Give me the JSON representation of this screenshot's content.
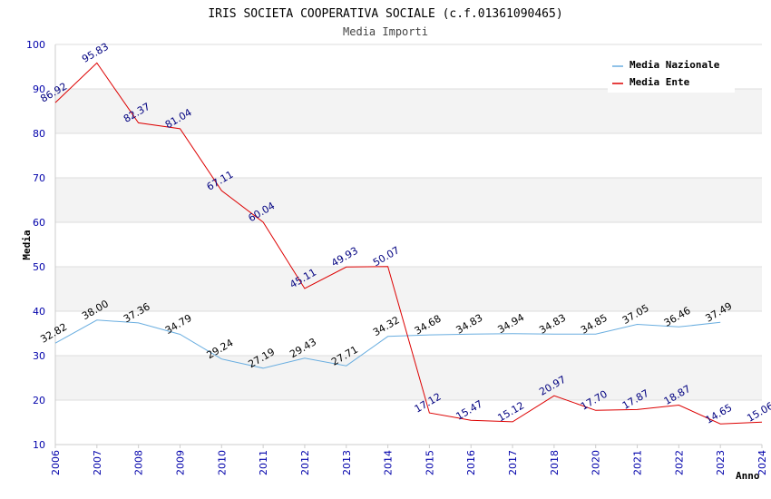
{
  "chart_data": {
    "type": "line",
    "title": "IRIS SOCIETA COOPERATIVA SOCIALE (c.f.01361090465)",
    "subtitle": "Media Importi",
    "xlabel": "Anno",
    "ylabel": "Media",
    "ylim": [
      10,
      100
    ],
    "yticks": [
      "10",
      "20",
      "30",
      "40",
      "50",
      "60",
      "70",
      "80",
      "90",
      "100"
    ],
    "categories": [
      "2006",
      "2007",
      "2008",
      "2009",
      "2010",
      "2011",
      "2012",
      "2013",
      "2014",
      "2015",
      "2016",
      "2017",
      "2018",
      "2020",
      "2021",
      "2022",
      "2023",
      "2024"
    ],
    "grid": true,
    "legend_position": "top-right",
    "series": [
      {
        "name": "Media Nazionale",
        "color": "#6aaee0",
        "values": [
          32.82,
          38.0,
          37.36,
          34.79,
          29.24,
          27.19,
          29.43,
          27.71,
          34.32,
          34.68,
          34.83,
          34.94,
          34.83,
          34.85,
          37.05,
          36.46,
          37.49,
          null
        ],
        "labels": [
          "32.82",
          "38.00",
          "37.36",
          "34.79",
          "29.24",
          "27.19",
          "29.43",
          "27.71",
          "34.32",
          "34.68",
          "34.83",
          "34.94",
          "34.83",
          "34.85",
          "37.05",
          "36.46",
          "37.49",
          null
        ]
      },
      {
        "name": "Media Ente",
        "color": "#dd0000",
        "values": [
          86.92,
          95.83,
          82.37,
          81.04,
          67.11,
          60.04,
          45.11,
          49.93,
          50.07,
          17.12,
          15.47,
          15.12,
          20.97,
          17.7,
          17.87,
          18.87,
          14.65,
          15.06
        ],
        "labels": [
          "86.92",
          "95.83",
          "82.37",
          "81.04",
          "67.11",
          "60.04",
          "45.11",
          "49.93",
          "50.07",
          "17.12",
          "15.47",
          "15.12",
          "20.97",
          "17.70",
          "17.87",
          "18.87",
          "14.65",
          "15.06"
        ]
      }
    ]
  }
}
